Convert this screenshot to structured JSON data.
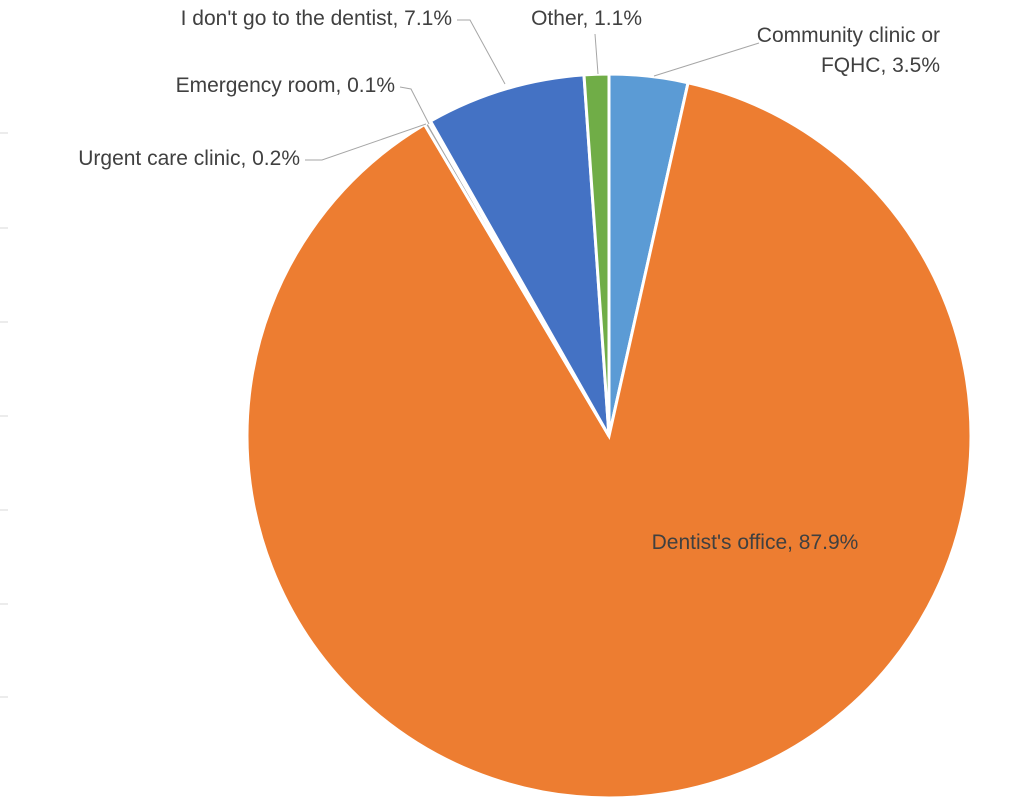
{
  "chart_data": {
    "type": "pie",
    "start_angle_deg": 0,
    "direction": "clockwise",
    "slices": [
      {
        "label": "Community clinic or FQHC",
        "value": 3.5,
        "value_label": "3.5%",
        "color": "#5b9bd5",
        "label_lines": [
          "Community clinic or",
          "FQHC, 3.5%"
        ]
      },
      {
        "label": "Dentist's office",
        "value": 87.9,
        "value_label": "87.9%",
        "color": "#ed7d31",
        "label_lines": [
          "Dentist's office, 87.9%"
        ]
      },
      {
        "label": "Urgent care clinic",
        "value": 0.2,
        "value_label": "0.2%",
        "color": "#a5a5a5",
        "label_lines": [
          "Urgent care clinic, 0.2%"
        ]
      },
      {
        "label": "Emergency room",
        "value": 0.1,
        "value_label": "0.1%",
        "color": "#ffc000",
        "label_lines": [
          "Emergency room, 0.1%"
        ]
      },
      {
        "label": "I don't go to the dentist",
        "value": 7.1,
        "value_label": "7.1%",
        "color": "#4472c4",
        "label_lines": [
          "I don't go to the dentist, 7.1%"
        ]
      },
      {
        "label": "Other",
        "value": 1.1,
        "value_label": "1.1%",
        "color": "#70ad47",
        "label_lines": [
          "Other, 1.1%"
        ]
      }
    ]
  }
}
